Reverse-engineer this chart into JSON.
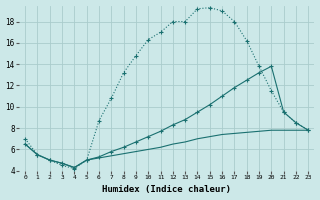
{
  "xlabel": "Humidex (Indice chaleur)",
  "bg_color": "#cce8e8",
  "grid_color": "#aacccc",
  "line_color": "#1a7070",
  "xlim": [
    -0.5,
    23.5
  ],
  "ylim": [
    4,
    19.5
  ],
  "yticks": [
    4,
    6,
    8,
    10,
    12,
    14,
    16,
    18
  ],
  "xticks": [
    0,
    1,
    2,
    3,
    4,
    5,
    6,
    7,
    8,
    9,
    10,
    11,
    12,
    13,
    14,
    15,
    16,
    17,
    18,
    19,
    20,
    21,
    22,
    23
  ],
  "line1_x": [
    0,
    1,
    2,
    3,
    4,
    5,
    6,
    7,
    8,
    9,
    10,
    11,
    12,
    13,
    14,
    15,
    16,
    17,
    18,
    19,
    20,
    21,
    22,
    23
  ],
  "line1_y": [
    7.0,
    5.5,
    5.0,
    4.5,
    4.2,
    5.0,
    8.7,
    10.8,
    13.2,
    14.8,
    16.3,
    17.0,
    18.0,
    18.0,
    19.2,
    19.3,
    19.0,
    18.0,
    16.2,
    13.8,
    11.5,
    9.5,
    8.5,
    7.8
  ],
  "line2_x": [
    0,
    1,
    2,
    3,
    4,
    5,
    6,
    7,
    8,
    9,
    10,
    11,
    12,
    13,
    14,
    15,
    16,
    17,
    18,
    19,
    20,
    21,
    22,
    23
  ],
  "line2_y": [
    6.5,
    5.5,
    5.0,
    4.7,
    4.3,
    5.0,
    5.3,
    5.8,
    6.2,
    6.7,
    7.2,
    7.7,
    8.3,
    8.8,
    9.5,
    10.2,
    11.0,
    11.8,
    12.5,
    13.2,
    13.8,
    9.5,
    8.5,
    7.8
  ],
  "line3_x": [
    0,
    1,
    2,
    3,
    4,
    5,
    6,
    7,
    8,
    9,
    10,
    11,
    12,
    13,
    14,
    15,
    16,
    17,
    18,
    19,
    20,
    21,
    22,
    23
  ],
  "line3_y": [
    6.5,
    5.5,
    5.0,
    4.7,
    4.3,
    5.0,
    5.2,
    5.4,
    5.6,
    5.8,
    6.0,
    6.2,
    6.5,
    6.7,
    7.0,
    7.2,
    7.4,
    7.5,
    7.6,
    7.7,
    7.8,
    7.8,
    7.8,
    7.8
  ]
}
